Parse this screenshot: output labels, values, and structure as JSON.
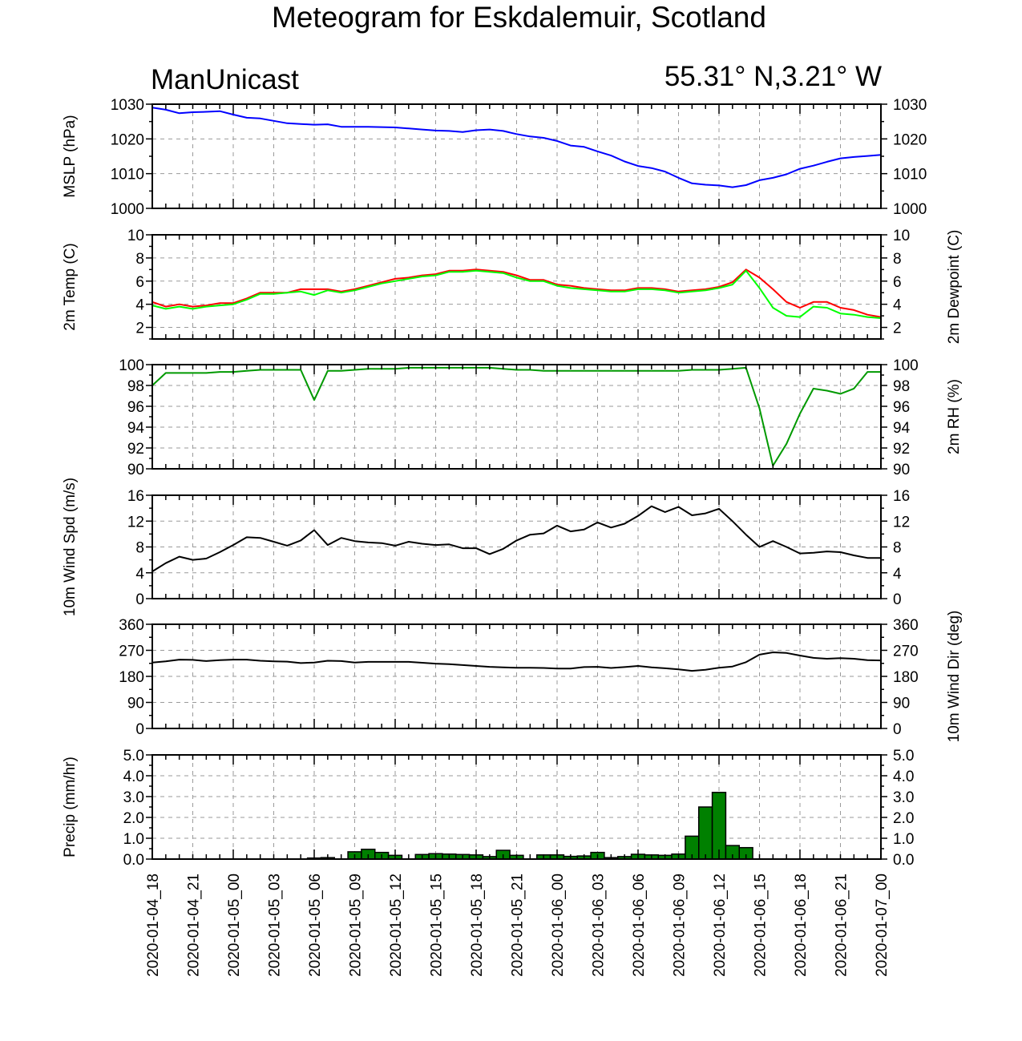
{
  "title": "Meteogram for Eskdalemuir, Scotland",
  "model": "ManUnicast",
  "location": "55.31° N,3.21° W",
  "x_tick_labels": [
    "2020-01-04_18",
    "2020-01-04_21",
    "2020-01-05_00",
    "2020-01-05_03",
    "2020-01-05_06",
    "2020-01-05_09",
    "2020-01-05_12",
    "2020-01-05_15",
    "2020-01-05_18",
    "2020-01-05_21",
    "2020-01-06_00",
    "2020-01-06_03",
    "2020-01-06_06",
    "2020-01-06_09",
    "2020-01-06_12",
    "2020-01-06_15",
    "2020-01-06_18",
    "2020-01-06_21",
    "2020-01-07_00"
  ],
  "colors": {
    "mslp": "#0000ff",
    "temp": "#ff0000",
    "dewpoint": "#00ff00",
    "rh": "#009900",
    "wind": "#000000",
    "precip": "#008000",
    "grid": "#9a9a9a"
  },
  "chart_data": [
    {
      "type": "line",
      "ylabel": "MSLP (hPa)",
      "ylabel_right": "",
      "ylim": [
        1000,
        1030
      ],
      "yticks": [
        1000,
        1010,
        1020,
        1030
      ],
      "tick_labels": [
        "1000",
        "1010",
        "1020",
        "1030"
      ],
      "series": [
        {
          "color": "mslp",
          "x": [
            0,
            1,
            2,
            3,
            4,
            5,
            6,
            7,
            8,
            9,
            10,
            11,
            12,
            13,
            14,
            15,
            16,
            17,
            18,
            19,
            20,
            21,
            22,
            23,
            24,
            25,
            26,
            27,
            28,
            29,
            30,
            31,
            32,
            33,
            34,
            35,
            36,
            37,
            38,
            39,
            40,
            41,
            42,
            43,
            44,
            45,
            46,
            47,
            48,
            49,
            50,
            51,
            52,
            53,
            54
          ],
          "values": [
            1029,
            1028.4,
            1027.4,
            1027.7,
            1027.8,
            1028.0,
            1027.0,
            1026.1,
            1025.9,
            1025.2,
            1024.5,
            1024.3,
            1024.1,
            1024.2,
            1023.5,
            1023.5,
            1023.5,
            1023.4,
            1023.3,
            1023.0,
            1022.7,
            1022.4,
            1022.3,
            1022.0,
            1022.5,
            1022.7,
            1022.3,
            1021.4,
            1020.7,
            1020.3,
            1019.4,
            1018.1,
            1017.7,
            1016.4,
            1015.2,
            1013.5,
            1012.2,
            1011.6,
            1010.6,
            1008.8,
            1007.2,
            1006.8,
            1006.6,
            1006.1,
            1006.7,
            1008.1,
            1008.8,
            1009.8,
            1011.4,
            1012.3,
            1013.4,
            1014.4,
            1014.8,
            1015.1,
            1015.4
          ]
        }
      ]
    },
    {
      "type": "line",
      "ylabel": "2m Temp (C)",
      "ylabel_right": "2m Dewpoint (C)",
      "ylim": [
        1,
        10
      ],
      "yticks": [
        2,
        4,
        6,
        8,
        10
      ],
      "tick_labels": [
        "2",
        "4",
        "6",
        "8",
        "10"
      ],
      "series": [
        {
          "color": "temp",
          "x": [
            0,
            1,
            2,
            3,
            4,
            5,
            6,
            7,
            8,
            9,
            10,
            11,
            12,
            13,
            14,
            15,
            16,
            17,
            18,
            19,
            20,
            21,
            22,
            23,
            24,
            25,
            26,
            27,
            28,
            29,
            30,
            31,
            32,
            33,
            34,
            35,
            36,
            37,
            38,
            39,
            40,
            41,
            42,
            43,
            44,
            45,
            46,
            47,
            48,
            49,
            50,
            51,
            52,
            53,
            54
          ],
          "values": [
            4.2,
            3.8,
            4.0,
            3.8,
            3.9,
            4.1,
            4.1,
            4.5,
            5.0,
            5.0,
            5.0,
            5.3,
            5.3,
            5.3,
            5.1,
            5.3,
            5.6,
            5.9,
            6.2,
            6.3,
            6.5,
            6.6,
            6.9,
            6.9,
            7.0,
            6.9,
            6.8,
            6.5,
            6.1,
            6.1,
            5.7,
            5.6,
            5.4,
            5.3,
            5.2,
            5.2,
            5.4,
            5.4,
            5.3,
            5.1,
            5.2,
            5.3,
            5.5,
            5.9,
            7.0,
            6.3,
            5.3,
            4.2,
            3.7,
            4.2,
            4.2,
            3.7,
            3.5,
            3.1,
            2.9
          ]
        },
        {
          "color": "dewpoint",
          "x": [
            0,
            1,
            2,
            3,
            4,
            5,
            6,
            7,
            8,
            9,
            10,
            11,
            12,
            13,
            14,
            15,
            16,
            17,
            18,
            19,
            20,
            21,
            22,
            23,
            24,
            25,
            26,
            27,
            28,
            29,
            30,
            31,
            32,
            33,
            34,
            35,
            36,
            37,
            38,
            39,
            40,
            41,
            42,
            43,
            44,
            45,
            46,
            47,
            48,
            49,
            50,
            51,
            52,
            53,
            54
          ],
          "values": [
            3.9,
            3.6,
            3.8,
            3.6,
            3.8,
            3.9,
            4.0,
            4.4,
            4.9,
            4.9,
            5.0,
            5.1,
            4.8,
            5.2,
            5.0,
            5.2,
            5.5,
            5.8,
            6.0,
            6.2,
            6.4,
            6.5,
            6.8,
            6.8,
            6.9,
            6.8,
            6.7,
            6.3,
            6.0,
            6.0,
            5.6,
            5.4,
            5.3,
            5.2,
            5.1,
            5.1,
            5.3,
            5.3,
            5.2,
            5.0,
            5.1,
            5.2,
            5.4,
            5.7,
            6.9,
            5.4,
            3.7,
            3.0,
            2.9,
            3.8,
            3.7,
            3.2,
            3.1,
            2.9,
            2.8
          ]
        }
      ]
    },
    {
      "type": "line",
      "ylabel": "",
      "ylabel_right": "2m RH (%)",
      "ylim": [
        90,
        100
      ],
      "yticks": [
        90,
        92,
        94,
        96,
        98,
        100
      ],
      "tick_labels": [
        "90",
        "92",
        "94",
        "96",
        "98",
        "100"
      ],
      "series": [
        {
          "color": "rh",
          "x": [
            0,
            1,
            2,
            3,
            4,
            5,
            6,
            7,
            8,
            9,
            10,
            11,
            12,
            13,
            14,
            15,
            16,
            17,
            18,
            19,
            20,
            21,
            22,
            23,
            24,
            25,
            26,
            27,
            28,
            29,
            30,
            31,
            32,
            33,
            34,
            35,
            36,
            37,
            38,
            39,
            40,
            41,
            42,
            43,
            44,
            45,
            46,
            47,
            48,
            49,
            50,
            51,
            52,
            53,
            54
          ],
          "values": [
            98.0,
            99.2,
            99.2,
            99.2,
            99.2,
            99.3,
            99.3,
            99.4,
            99.5,
            99.5,
            99.5,
            99.5,
            96.6,
            99.4,
            99.4,
            99.5,
            99.6,
            99.6,
            99.6,
            99.7,
            99.7,
            99.7,
            99.7,
            99.7,
            99.7,
            99.7,
            99.6,
            99.5,
            99.5,
            99.4,
            99.4,
            99.4,
            99.4,
            99.4,
            99.4,
            99.4,
            99.4,
            99.4,
            99.4,
            99.4,
            99.5,
            99.5,
            99.5,
            99.6,
            99.7,
            95.8,
            90.3,
            92.4,
            95.3,
            97.7,
            97.5,
            97.2,
            97.7,
            99.3,
            99.3
          ]
        }
      ]
    },
    {
      "type": "line",
      "ylabel": "10m Wind Spd (m/s)",
      "ylabel_right": "",
      "ylim": [
        0,
        16
      ],
      "yticks": [
        0,
        4,
        8,
        12,
        16
      ],
      "tick_labels": [
        "0",
        "4",
        "8",
        "12",
        "16"
      ],
      "series": [
        {
          "color": "wind",
          "x": [
            0,
            1,
            2,
            3,
            4,
            5,
            6,
            7,
            8,
            9,
            10,
            11,
            12,
            13,
            14,
            15,
            16,
            17,
            18,
            19,
            20,
            21,
            22,
            23,
            24,
            25,
            26,
            27,
            28,
            29,
            30,
            31,
            32,
            33,
            34,
            35,
            36,
            37,
            38,
            39,
            40,
            41,
            42,
            43,
            44,
            45,
            46,
            47,
            48,
            49,
            50,
            51,
            52,
            53,
            54
          ],
          "values": [
            4.2,
            5.5,
            6.5,
            6.0,
            6.2,
            7.2,
            8.3,
            9.5,
            9.4,
            8.8,
            8.2,
            9.0,
            10.6,
            8.3,
            9.4,
            8.9,
            8.7,
            8.6,
            8.2,
            8.8,
            8.5,
            8.3,
            8.4,
            7.8,
            7.8,
            6.9,
            7.7,
            9.0,
            9.9,
            10.1,
            11.3,
            10.4,
            10.7,
            11.8,
            11.0,
            11.6,
            12.8,
            14.3,
            13.4,
            14.2,
            12.9,
            13.2,
            13.9,
            12.0,
            9.9,
            8.0,
            8.9,
            8.0,
            7.0,
            7.1,
            7.3,
            7.2,
            6.7,
            6.3,
            6.3
          ]
        }
      ]
    },
    {
      "type": "line",
      "ylabel": "",
      "ylabel_right": "10m Wind Dir (deg)",
      "ylim": [
        0,
        360
      ],
      "yticks": [
        0,
        90,
        180,
        270,
        360
      ],
      "tick_labels": [
        "0",
        "90",
        "180",
        "270",
        "360"
      ],
      "series": [
        {
          "color": "wind",
          "x": [
            0,
            1,
            2,
            3,
            4,
            5,
            6,
            7,
            8,
            9,
            10,
            11,
            12,
            13,
            14,
            15,
            16,
            17,
            18,
            19,
            20,
            21,
            22,
            23,
            24,
            25,
            26,
            27,
            28,
            29,
            30,
            31,
            32,
            33,
            34,
            35,
            36,
            37,
            38,
            39,
            40,
            41,
            42,
            43,
            44,
            45,
            46,
            47,
            48,
            49,
            50,
            51,
            52,
            53,
            54
          ],
          "values": [
            228,
            232,
            238,
            237,
            233,
            236,
            238,
            238,
            234,
            232,
            231,
            226,
            228,
            234,
            233,
            228,
            230,
            230,
            230,
            230,
            227,
            224,
            222,
            219,
            216,
            213,
            211,
            210,
            210,
            209,
            207,
            207,
            212,
            213,
            209,
            212,
            216,
            211,
            208,
            204,
            199,
            203,
            210,
            214,
            229,
            255,
            263,
            261,
            252,
            244,
            241,
            243,
            241,
            236,
            235
          ]
        }
      ]
    },
    {
      "type": "bar",
      "ylabel": "Precip (mm/hr)",
      "ylabel_right": "",
      "ylim": [
        0,
        5
      ],
      "yticks": [
        0,
        1,
        2,
        3,
        4,
        5
      ],
      "tick_labels": [
        "0.0",
        "1.0",
        "2.0",
        "3.0",
        "4.0",
        "5.0"
      ],
      "series": [
        {
          "color": "precip",
          "x": [
            12,
            13,
            15,
            16,
            17,
            18,
            20,
            21,
            22,
            23,
            24,
            25,
            26,
            27,
            29,
            30,
            31,
            32,
            33,
            34,
            35,
            36,
            37,
            38,
            39,
            40,
            41,
            42,
            43,
            44
          ],
          "values": [
            0.05,
            0.07,
            0.35,
            0.47,
            0.32,
            0.18,
            0.22,
            0.26,
            0.24,
            0.22,
            0.2,
            0.12,
            0.42,
            0.18,
            0.2,
            0.2,
            0.13,
            0.15,
            0.32,
            0.07,
            0.12,
            0.23,
            0.2,
            0.18,
            0.24,
            1.1,
            2.5,
            3.2,
            0.65,
            0.55
          ]
        }
      ]
    }
  ]
}
